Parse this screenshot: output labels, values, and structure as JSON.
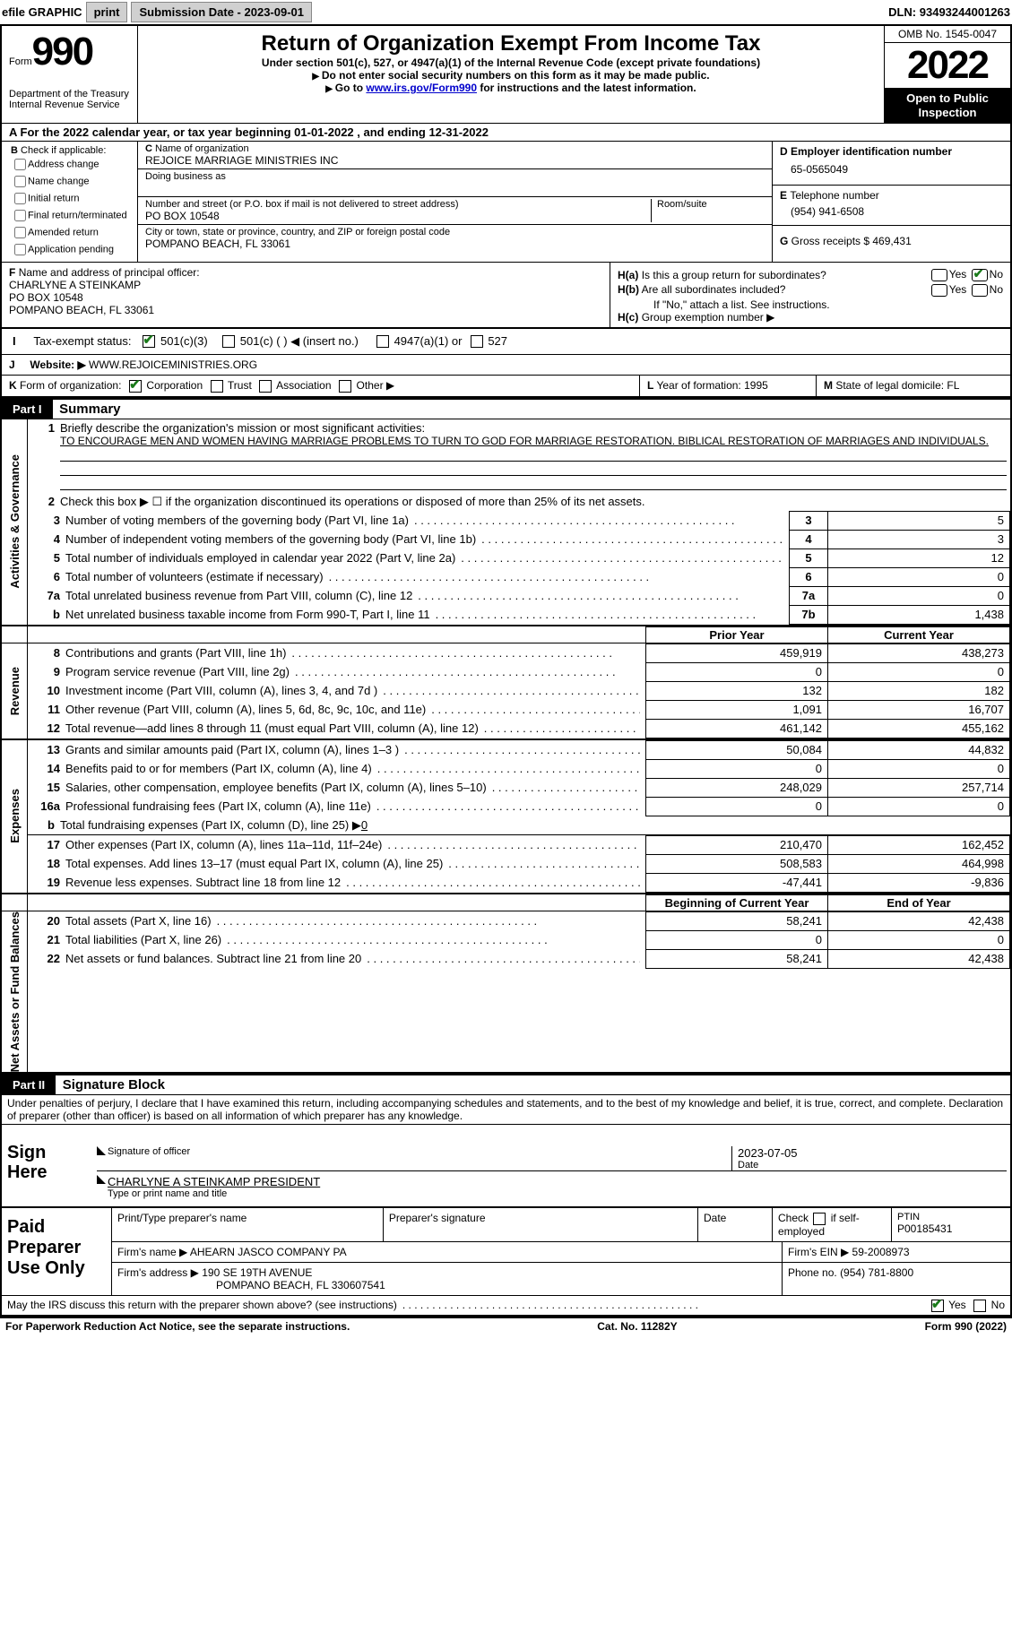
{
  "top": {
    "efile": "efile GRAPHIC",
    "print": "print",
    "sub_label": "Submission Date - ",
    "sub_date": "2023-09-01",
    "dln_label": "DLN: ",
    "dln": "93493244001263"
  },
  "header": {
    "form_word": "Form",
    "form_no": "990",
    "dept": "Department of the Treasury",
    "irs": "Internal Revenue Service",
    "title": "Return of Organization Exempt From Income Tax",
    "sub1": "Under section 501(c), 527, or 4947(a)(1) of the Internal Revenue Code (except private foundations)",
    "sub2": "Do not enter social security numbers on this form as it may be made public.",
    "sub3_pre": "Go to ",
    "sub3_link": "www.irs.gov/Form990",
    "sub3_post": " for instructions and the latest information.",
    "omb": "OMB No. 1545-0047",
    "year": "2022",
    "open": "Open to Public Inspection"
  },
  "rowA": {
    "pre": "For the 2022 calendar year, or tax year beginning ",
    "begin": "01-01-2022",
    "mid": "  , and ending ",
    "end": "12-31-2022"
  },
  "B": {
    "label": "Check if applicable:",
    "items": [
      "Address change",
      "Name change",
      "Initial return",
      "Final return/terminated",
      "Amended return",
      "Application pending"
    ]
  },
  "C": {
    "name_label": "Name of organization",
    "name": "REJOICE MARRIAGE MINISTRIES INC",
    "dba_label": "Doing business as",
    "addr_label": "Number and street (or P.O. box if mail is not delivered to street address)",
    "room_label": "Room/suite",
    "addr": "PO BOX 10548",
    "city_label": "City or town, state or province, country, and ZIP or foreign postal code",
    "city": "POMPANO BEACH, FL  33061"
  },
  "D": {
    "label": "Employer identification number",
    "val": "65-0565049"
  },
  "E": {
    "label": "Telephone number",
    "val": "(954) 941-6508"
  },
  "G": {
    "label": "Gross receipts $ ",
    "val": "469,431"
  },
  "F": {
    "label": "Name and address of principal officer:",
    "name": "CHARLYNE A STEINKAMP",
    "line1": "PO BOX 10548",
    "line2": "POMPANO BEACH, FL  33061"
  },
  "H": {
    "a": "Is this a group return for subordinates?",
    "b": "Are all subordinates included?",
    "b_note": "If \"No,\" attach a list. See instructions.",
    "c_label": "Group exemption number ▶",
    "yes": "Yes",
    "no": "No"
  },
  "I": {
    "label": "Tax-exempt status:",
    "opts": [
      "501(c)(3)",
      "501(c) (   ) ◀ (insert no.)",
      "4947(a)(1) or",
      "527"
    ]
  },
  "J": {
    "label": "Website: ▶",
    "val": "WWW.REJOICEMINISTRIES.ORG"
  },
  "K": {
    "label": "Form of organization:",
    "opts": [
      "Corporation",
      "Trust",
      "Association",
      "Other ▶"
    ]
  },
  "L": {
    "label": "Year of formation: ",
    "val": "1995"
  },
  "M": {
    "label": "State of legal domicile: ",
    "val": "FL"
  },
  "part1": {
    "hdr": "Part I",
    "title": "Summary"
  },
  "s1": {
    "tab": "Activities & Governance",
    "l1": "Briefly describe the organization's mission or most significant activities:",
    "mission": "TO ENCOURAGE MEN AND WOMEN HAVING MARRIAGE PROBLEMS TO TURN TO GOD FOR MARRIAGE RESTORATION. BIBLICAL RESTORATION OF MARRIAGES AND INDIVIDUALS.",
    "l2": "Check this box ▶ ☐  if the organization discontinued its operations or disposed of more than 25% of its net assets.",
    "l3": "Number of voting members of the governing body (Part VI, line 1a)",
    "l4": "Number of independent voting members of the governing body (Part VI, line 1b)",
    "l5": "Total number of individuals employed in calendar year 2022 (Part V, line 2a)",
    "l6": "Total number of volunteers (estimate if necessary)",
    "l7a": "Total unrelated business revenue from Part VIII, column (C), line 12",
    "l7b": "Net unrelated business taxable income from Form 990-T, Part I, line 11",
    "v3": "5",
    "v4": "3",
    "v5": "12",
    "v6": "0",
    "v7a": "0",
    "v7b": "1,438"
  },
  "pycy": {
    "py": "Prior Year",
    "cy": "Current Year"
  },
  "s2": {
    "tab": "Revenue",
    "rows": [
      {
        "n": "8",
        "t": "Contributions and grants (Part VIII, line 1h)",
        "py": "459,919",
        "cy": "438,273"
      },
      {
        "n": "9",
        "t": "Program service revenue (Part VIII, line 2g)",
        "py": "0",
        "cy": "0"
      },
      {
        "n": "10",
        "t": "Investment income (Part VIII, column (A), lines 3, 4, and 7d )",
        "py": "132",
        "cy": "182"
      },
      {
        "n": "11",
        "t": "Other revenue (Part VIII, column (A), lines 5, 6d, 8c, 9c, 10c, and 11e)",
        "py": "1,091",
        "cy": "16,707"
      },
      {
        "n": "12",
        "t": "Total revenue—add lines 8 through 11 (must equal Part VIII, column (A), line 12)",
        "py": "461,142",
        "cy": "455,162"
      }
    ]
  },
  "s3": {
    "tab": "Expenses",
    "rows": [
      {
        "n": "13",
        "t": "Grants and similar amounts paid (Part IX, column (A), lines 1–3 )",
        "py": "50,084",
        "cy": "44,832"
      },
      {
        "n": "14",
        "t": "Benefits paid to or for members (Part IX, column (A), line 4)",
        "py": "0",
        "cy": "0"
      },
      {
        "n": "15",
        "t": "Salaries, other compensation, employee benefits (Part IX, column (A), lines 5–10)",
        "py": "248,029",
        "cy": "257,714"
      },
      {
        "n": "16a",
        "t": "Professional fundraising fees (Part IX, column (A), line 11e)",
        "py": "0",
        "cy": "0"
      }
    ],
    "l16b_pre": "Total fundraising expenses (Part IX, column (D), line 25) ▶",
    "l16b_val": "0",
    "rows2": [
      {
        "n": "17",
        "t": "Other expenses (Part IX, column (A), lines 11a–11d, 11f–24e)",
        "py": "210,470",
        "cy": "162,452"
      },
      {
        "n": "18",
        "t": "Total expenses. Add lines 13–17 (must equal Part IX, column (A), line 25)",
        "py": "508,583",
        "cy": "464,998"
      },
      {
        "n": "19",
        "t": "Revenue less expenses. Subtract line 18 from line 12",
        "py": "-47,441",
        "cy": "-9,836"
      }
    ]
  },
  "bcey": {
    "b": "Beginning of Current Year",
    "e": "End of Year"
  },
  "s4": {
    "tab": "Net Assets or Fund Balances",
    "rows": [
      {
        "n": "20",
        "t": "Total assets (Part X, line 16)",
        "b": "58,241",
        "e": "42,438"
      },
      {
        "n": "21",
        "t": "Total liabilities (Part X, line 26)",
        "b": "0",
        "e": "0"
      },
      {
        "n": "22",
        "t": "Net assets or fund balances. Subtract line 21 from line 20",
        "b": "58,241",
        "e": "42,438"
      }
    ]
  },
  "part2": {
    "hdr": "Part II",
    "title": "Signature Block"
  },
  "decl": "Under penalties of perjury, I declare that I have examined this return, including accompanying schedules and statements, and to the best of my knowledge and belief, it is true, correct, and complete. Declaration of preparer (other than officer) is based on all information of which preparer has any knowledge.",
  "sign": {
    "here": "Sign Here",
    "sig_label": "Signature of officer",
    "date_label": "Date",
    "date": "2023-07-05",
    "name": "CHARLYNE A STEINKAMP  PRESIDENT",
    "name_label": "Type or print name and title"
  },
  "prep": {
    "label": "Paid Preparer Use Only",
    "col1": "Print/Type preparer's name",
    "col2": "Preparer's signature",
    "col3": "Date",
    "col4_pre": "Check",
    "col4_post": "if self-employed",
    "ptin_label": "PTIN",
    "ptin": "P00185431",
    "firm_label": "Firm's name  ▶",
    "firm": "AHEARN JASCO COMPANY PA",
    "ein_label": "Firm's EIN ▶ ",
    "ein": "59-2008973",
    "addr_label": "Firm's address ▶",
    "addr1": "190 SE 19TH AVENUE",
    "addr2": "POMPANO BEACH, FL  330607541",
    "ph_label": "Phone no. ",
    "ph": "(954) 781-8800"
  },
  "may": {
    "q": "May the IRS discuss this return with the preparer shown above? (see instructions)",
    "yes": "Yes",
    "no": "No"
  },
  "foot": {
    "left": "For Paperwork Reduction Act Notice, see the separate instructions.",
    "mid": "Cat. No. 11282Y",
    "right": "Form 990 (2022)"
  }
}
